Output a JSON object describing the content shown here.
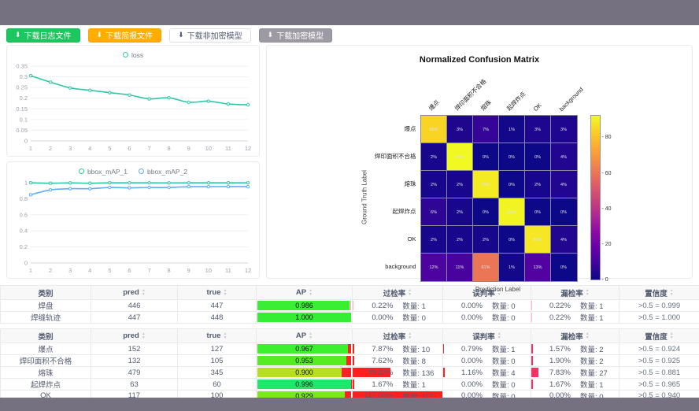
{
  "toolbar": {
    "download_icon": "⬇",
    "buttons": [
      {
        "label": "下载日志文件",
        "variant": "green"
      },
      {
        "label": "下载简报文件",
        "variant": "orange"
      },
      {
        "label": "下载非加密模型",
        "variant": "white"
      },
      {
        "label": "下载加密模型",
        "variant": "gray"
      }
    ]
  },
  "chart_data": [
    {
      "id": "loss",
      "type": "line",
      "x": [
        1,
        2,
        3,
        4,
        5,
        6,
        7,
        8,
        9,
        10,
        11,
        12
      ],
      "series": [
        {
          "name": "loss",
          "color": "#2ec7a5",
          "values": [
            0.305,
            0.275,
            0.248,
            0.237,
            0.226,
            0.215,
            0.197,
            0.202,
            0.181,
            0.186,
            0.173,
            0.169
          ]
        }
      ],
      "ylim": [
        0,
        0.35
      ],
      "yticks": [
        0,
        0.05,
        0.1,
        0.15,
        0.2,
        0.25,
        0.3,
        0.35
      ],
      "legend_position": "top"
    },
    {
      "id": "bbox_map",
      "type": "line",
      "x": [
        1,
        2,
        3,
        4,
        5,
        6,
        7,
        8,
        9,
        10,
        11,
        12
      ],
      "series": [
        {
          "name": "bbox_mAP_1",
          "color": "#2ec7a5",
          "values": [
            0.998,
            0.993,
            0.997,
            0.993,
            0.998,
            0.998,
            0.998,
            0.997,
            0.998,
            0.998,
            0.998,
            0.998
          ]
        },
        {
          "name": "bbox_mAP_2",
          "color": "#5cadff",
          "values": [
            0.85,
            0.91,
            0.925,
            0.925,
            0.94,
            0.936,
            0.94,
            0.94,
            0.95,
            0.95,
            0.952,
            0.95
          ]
        }
      ],
      "ylim": [
        0,
        1
      ],
      "yticks": [
        0,
        0.2,
        0.4,
        0.6,
        0.8,
        1
      ],
      "legend_position": "top"
    },
    {
      "id": "confusion_matrix",
      "type": "heatmap",
      "title": "Normalized Confusion Matrix",
      "xlabel": "Prediction Label",
      "ylabel": "Ground Truth Label",
      "labels": [
        "爆点",
        "焊印面积不合格",
        "熔珠",
        "起焊炸点",
        "OK",
        "background"
      ],
      "unit": "%",
      "values": [
        [
          85,
          3,
          7,
          1,
          3,
          3
        ],
        [
          2,
          93,
          0,
          0,
          0,
          4
        ],
        [
          2,
          2,
          90,
          0,
          2,
          4
        ],
        [
          6,
          2,
          0,
          92,
          0,
          0
        ],
        [
          2,
          2,
          2,
          0,
          89,
          4
        ],
        [
          12,
          11,
          61,
          1,
          13,
          0
        ]
      ],
      "vmax": 93,
      "colormap": "plasma",
      "colorbar_ticks": [
        0,
        20,
        40,
        60,
        80
      ]
    }
  ],
  "tables": [
    {
      "headers": [
        {
          "label": "类别",
          "sortable": false
        },
        {
          "label": "pred",
          "sortable": true
        },
        {
          "label": "true",
          "sortable": true
        },
        {
          "label": "AP",
          "sortable": true
        },
        {
          "label": "过检率",
          "sortable": true
        },
        {
          "label": "误判率",
          "sortable": true
        },
        {
          "label": "漏检率",
          "sortable": true
        },
        {
          "label": "置信度",
          "sortable": true
        }
      ],
      "rows": [
        {
          "category": "焊盘",
          "pred": "446",
          "true": "447",
          "ap": {
            "value": "0.986",
            "fraction": 0.986,
            "color": "#3aee33",
            "rest_color": "#ffb6c1"
          },
          "over": {
            "rate": "0.22%",
            "count": "数量: 1",
            "bar": 0.5,
            "bar_color": "#ffb6c1"
          },
          "mis": {
            "rate": "0.00%",
            "count": "数量: 0",
            "bar": 0,
            "bar_color": "#ff2a2a"
          },
          "miss": {
            "rate": "0.22%",
            "count": "数量: 1",
            "bar": 0.5,
            "bar_color": "#ffb6c1"
          },
          "conf": ">0.5 = 0.999"
        },
        {
          "category": "焊缝轨迹",
          "pred": "447",
          "true": "448",
          "ap": {
            "value": "1.000",
            "fraction": 1.0,
            "color": "#33ee33",
            "rest_color": "#ffb6c1"
          },
          "over": {
            "rate": "0.00%",
            "count": "数量: 0",
            "bar": 0,
            "bar_color": "#ff2a2a"
          },
          "mis": {
            "rate": "0.00%",
            "count": "数量: 0",
            "bar": 0,
            "bar_color": "#ff2a2a"
          },
          "miss": {
            "rate": "0.22%",
            "count": "数量: 1",
            "bar": 0.5,
            "bar_color": "#ffb6c1"
          },
          "conf": ">0.5 = 1.000"
        }
      ]
    },
    {
      "headers": [
        {
          "label": "类别",
          "sortable": false
        },
        {
          "label": "pred",
          "sortable": true
        },
        {
          "label": "true",
          "sortable": true
        },
        {
          "label": "AP",
          "sortable": true
        },
        {
          "label": "过检率",
          "sortable": true
        },
        {
          "label": "误判率",
          "sortable": true
        },
        {
          "label": "漏检率",
          "sortable": true
        },
        {
          "label": "置信度",
          "sortable": true
        }
      ],
      "rows": [
        {
          "category": "爆点",
          "pred": "152",
          "true": "127",
          "ap": {
            "value": "0.967",
            "fraction": 0.967,
            "color": "#3cf02b",
            "rest_color": "#ff2222"
          },
          "over": {
            "rate": "7.87%",
            "count": "数量: 10",
            "bar": 2,
            "bar_color": "#ff1f1f"
          },
          "mis": {
            "rate": "0.79%",
            "count": "数量: 1",
            "bar": 1,
            "bar_color": "#ff1f1f"
          },
          "miss": {
            "rate": "1.57%",
            "count": "数量: 2",
            "bar": 1.6,
            "bar_color": "#ff2e63"
          },
          "conf": ">0.5 = 0.924"
        },
        {
          "category": "焊印面积不合格",
          "pred": "132",
          "true": "105",
          "ap": {
            "value": "0.953",
            "fraction": 0.953,
            "color": "#55ec22",
            "rest_color": "#ff2222"
          },
          "over": {
            "rate": "7.62%",
            "count": "数量: 8",
            "bar": 2,
            "bar_color": "#ff1f1f"
          },
          "mis": {
            "rate": "0.00%",
            "count": "数量: 0",
            "bar": 0,
            "bar_color": "#ff1f1f"
          },
          "miss": {
            "rate": "1.90%",
            "count": "数量: 2",
            "bar": 2,
            "bar_color": "#ff2e63"
          },
          "conf": ">0.5 = 0.925"
        },
        {
          "category": "熔珠",
          "pred": "479",
          "true": "345",
          "ap": {
            "value": "0.900",
            "fraction": 0.9,
            "color": "#b8df1e",
            "rest_color": "#ff2222"
          },
          "over": {
            "rate": "39.42%",
            "count": "数量: 136",
            "bar": 42,
            "bar_color": "#ff1f1f"
          },
          "mis": {
            "rate": "1.16%",
            "count": "数量: 4",
            "bar": 1.4,
            "bar_color": "#ff1f1f"
          },
          "miss": {
            "rate": "7.83%",
            "count": "数量: 27",
            "bar": 8,
            "bar_color": "#ff2e63"
          },
          "conf": ">0.5 = 0.881"
        },
        {
          "category": "起焊炸点",
          "pred": "63",
          "true": "60",
          "ap": {
            "value": "0.996",
            "fraction": 0.996,
            "color": "#1ce96a",
            "rest_color": "#ff2222"
          },
          "over": {
            "rate": "1.67%",
            "count": "数量: 1",
            "bar": 1.7,
            "bar_color": "#ff1f1f"
          },
          "mis": {
            "rate": "0.00%",
            "count": "数量: 0",
            "bar": 0,
            "bar_color": "#ff1f1f"
          },
          "miss": {
            "rate": "1.67%",
            "count": "数量: 1",
            "bar": 1.7,
            "bar_color": "#ff2e63"
          },
          "conf": ">0.5 = 0.965"
        },
        {
          "category": "OK",
          "pred": "117",
          "true": "100",
          "ap": {
            "value": "0.929",
            "fraction": 0.929,
            "color": "#79e81f",
            "rest_color": "#ff2222"
          },
          "over": {
            "rate": "117.00%",
            "count": "数量: 117",
            "bar": 100,
            "bar_color": "#ff1f1f"
          },
          "mis": {
            "rate": "0.00%",
            "count": "数量: 0",
            "bar": 0,
            "bar_color": "#ff1f1f"
          },
          "miss": {
            "rate": "0.00%",
            "count": "数量: 0",
            "bar": 0,
            "bar_color": "#ff2e63"
          },
          "conf": ">0.5 = 0.940"
        }
      ]
    }
  ]
}
